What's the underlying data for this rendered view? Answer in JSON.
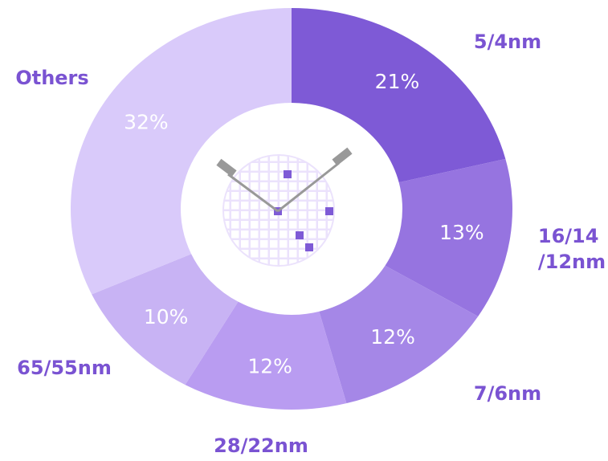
{
  "chart_data": {
    "type": "donut",
    "categories": [
      "5/4nm",
      "16/14\n/12nm",
      "7/6nm",
      "28/22nm",
      "65/55nm",
      "Others"
    ],
    "values": [
      21,
      13,
      12,
      12,
      10,
      32
    ],
    "value_labels": [
      "21%",
      "13%",
      "12%",
      "12%",
      "10%",
      "32%"
    ],
    "colors": [
      "#7e5ad6",
      "#9674e0",
      "#a587e7",
      "#b99cf1",
      "#c8b3f4",
      "#d9cafa"
    ]
  }
}
